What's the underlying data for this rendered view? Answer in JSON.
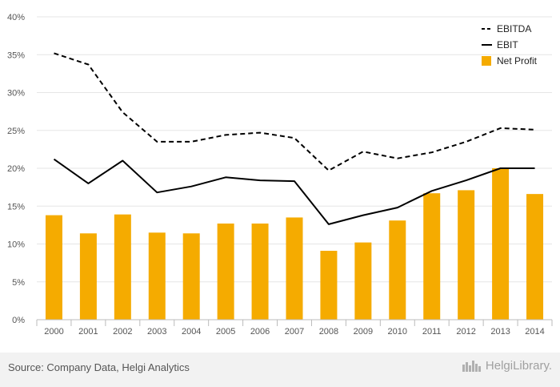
{
  "chart_data": {
    "type": "bar",
    "categories": [
      "2000",
      "2001",
      "2002",
      "2003",
      "2004",
      "2005",
      "2006",
      "2007",
      "2008",
      "2009",
      "2010",
      "2011",
      "2012",
      "2013",
      "2014"
    ],
    "ylim": [
      0,
      40
    ],
    "yticks": [
      "0%",
      "5%",
      "10%",
      "15%",
      "20%",
      "25%",
      "30%",
      "35%",
      "40%"
    ],
    "grid": true,
    "legend_position": "top-right",
    "series": [
      {
        "name": "EBITDA",
        "kind": "line",
        "style": "dashed",
        "color": "#000000",
        "values": [
          35.2,
          33.7,
          27.4,
          23.5,
          23.5,
          24.4,
          24.7,
          24.0,
          19.7,
          22.2,
          21.3,
          22.1,
          23.5,
          25.3,
          25.1
        ]
      },
      {
        "name": "EBIT",
        "kind": "line",
        "style": "solid",
        "color": "#000000",
        "values": [
          21.2,
          18.0,
          21.0,
          16.8,
          17.6,
          18.8,
          18.4,
          18.3,
          12.6,
          13.8,
          14.8,
          17.0,
          18.4,
          20.0,
          20.0
        ]
      },
      {
        "name": "Net Profit",
        "kind": "bar",
        "color": "#f5ab00",
        "values": [
          13.8,
          11.4,
          13.9,
          11.5,
          11.4,
          12.7,
          12.7,
          13.5,
          9.1,
          10.2,
          13.1,
          16.7,
          17.1,
          20.0,
          16.6
        ]
      }
    ]
  },
  "footer": {
    "source": "Source: Company Data, Helgi Analytics",
    "brand": "HelgiLibrary."
  }
}
